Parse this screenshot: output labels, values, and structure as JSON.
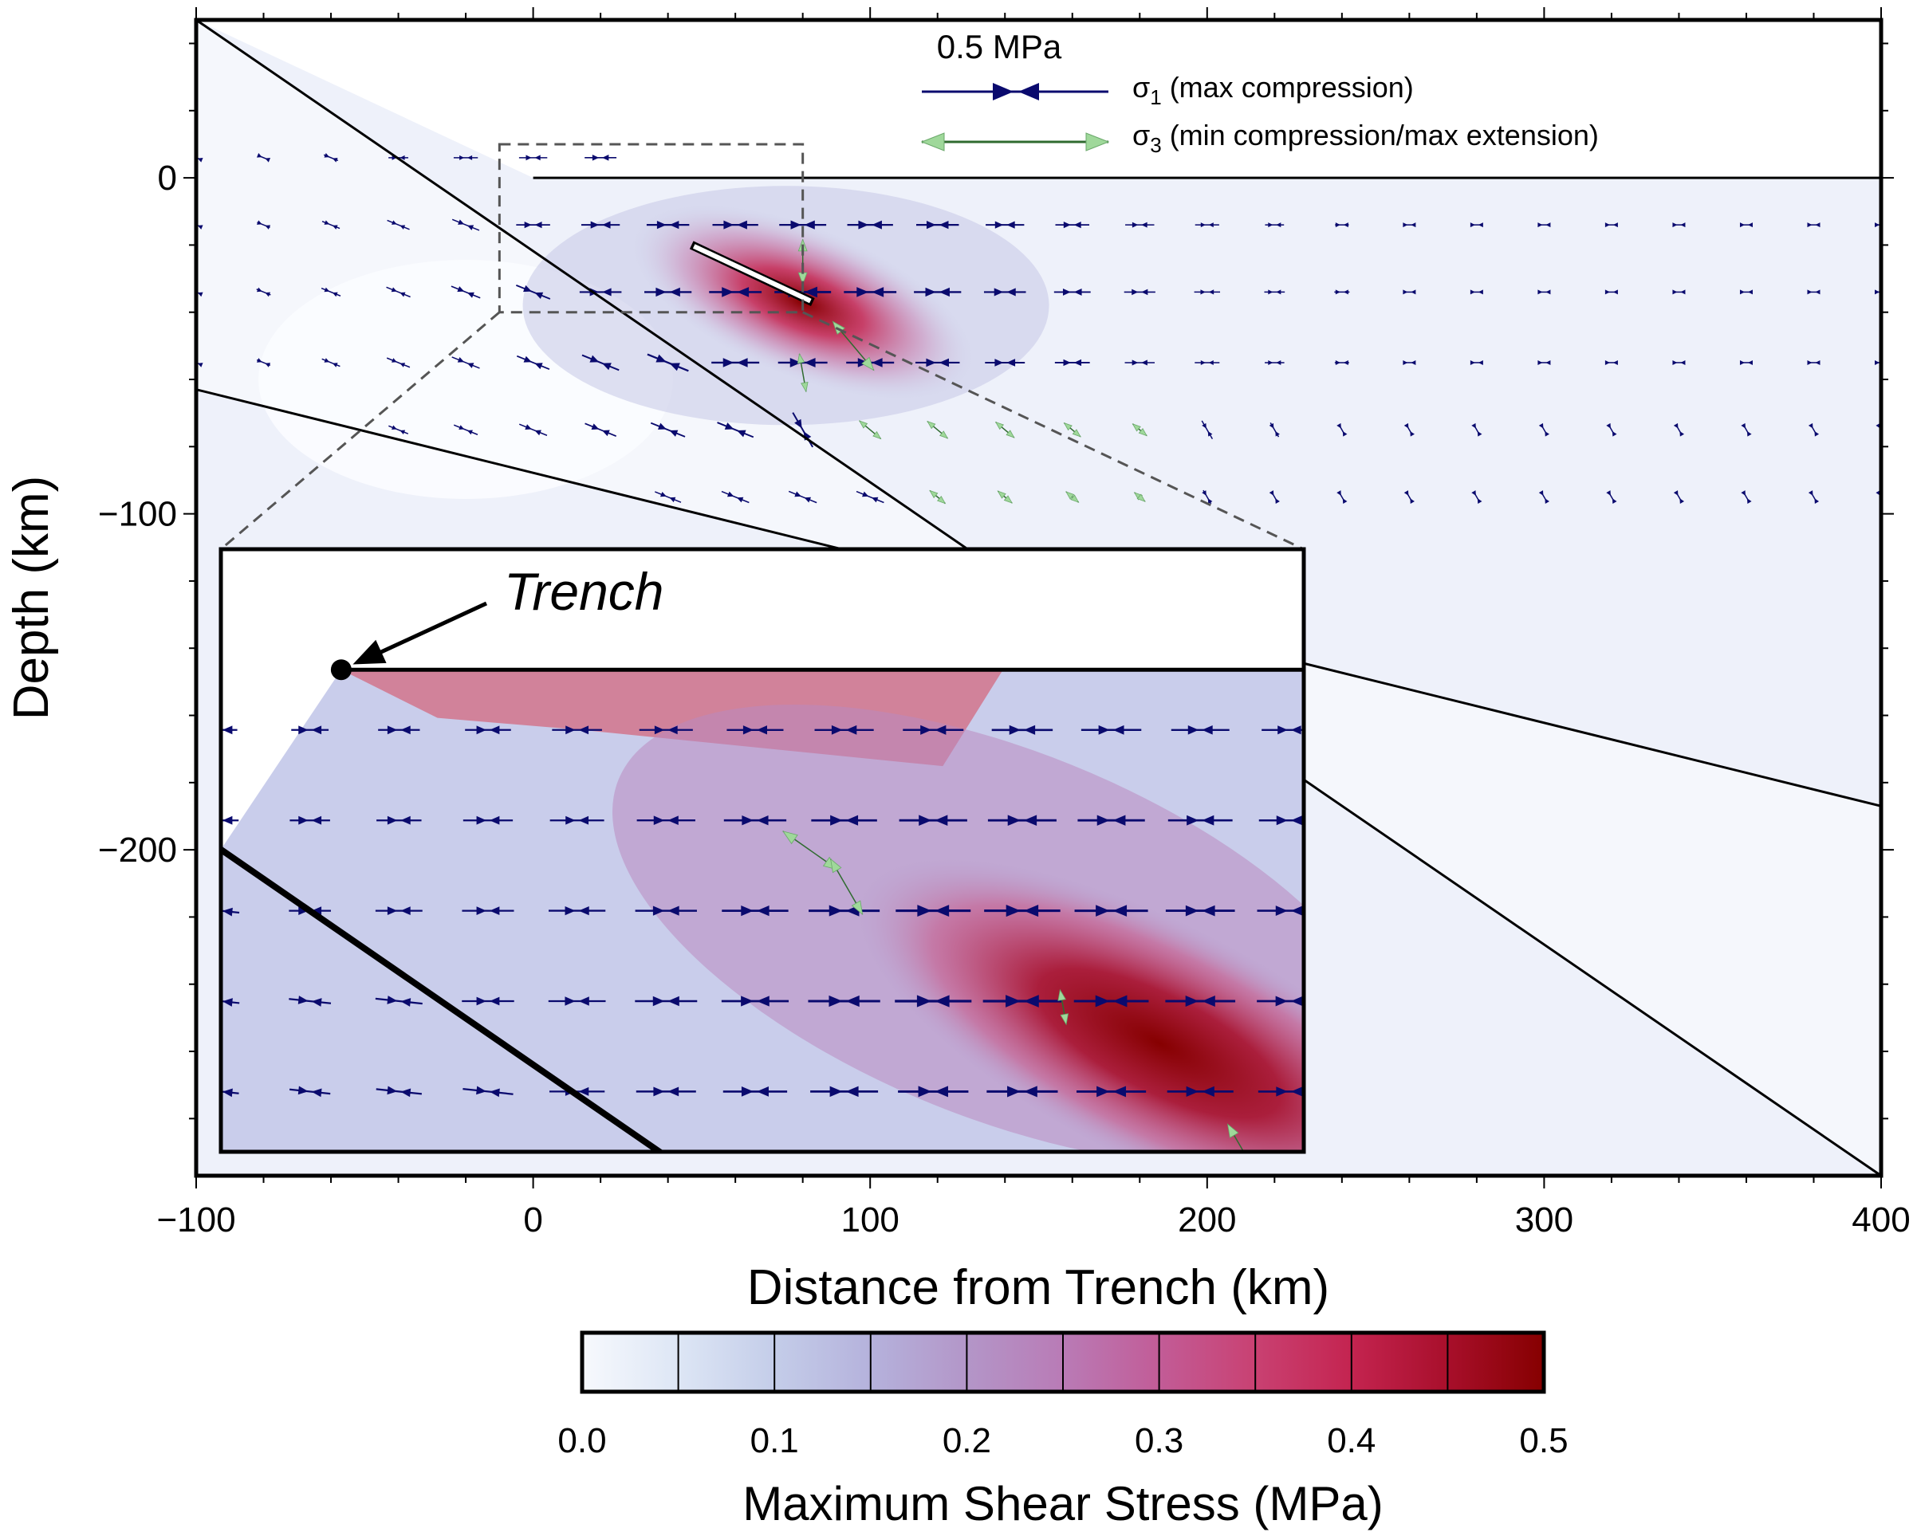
{
  "chart_data": {
    "type": "heatmap",
    "title": "",
    "xlabel": "Distance from Trench (km)",
    "ylabel": "Depth (km)",
    "xlim": [
      -100,
      400
    ],
    "ylim": [
      -297,
      47
    ],
    "x_ticks": [
      {
        "value": -100,
        "label": "−100"
      },
      {
        "value": 0,
        "label": "0"
      },
      {
        "value": 100,
        "label": "100"
      },
      {
        "value": 200,
        "label": "200"
      },
      {
        "value": 300,
        "label": "300"
      },
      {
        "value": 400,
        "label": "400"
      }
    ],
    "y_ticks": [
      {
        "value": 0,
        "label": "0"
      },
      {
        "value": -100,
        "label": "−100"
      },
      {
        "value": -200,
        "label": "−200"
      }
    ],
    "x_minor_step": 20,
    "y_minor_step": 20,
    "slab": {
      "top_line": [
        [
          -100,
          47
        ],
        [
          400,
          -297
        ]
      ],
      "bottom_line": [
        [
          -100,
          -63
        ],
        [
          400,
          -187
        ]
      ]
    },
    "fault": {
      "start": [
        47,
        -20
      ],
      "end": [
        83,
        -37
      ]
    },
    "stress_peak": {
      "x": 80,
      "y": -37,
      "value": 0.5
    },
    "inset": {
      "x_range": [
        -10,
        80
      ],
      "y_range": [
        -40,
        10
      ],
      "trench_label": "Trench",
      "trench_point": [
        0,
        0
      ]
    },
    "vector_legend": {
      "scale_label": "0.5 MPa",
      "sigma1": {
        "symbol": "σ",
        "sub": "1",
        "text": "(max compression)",
        "color": "#0a0a6e"
      },
      "sigma3": {
        "symbol": "σ",
        "sub": "3",
        "text": "(min compression/max extension)",
        "color": "#9fd89a"
      }
    },
    "colorbar": {
      "label": "Maximum Shear Stress (MPa)",
      "range": [
        0.0,
        0.5
      ],
      "step": 0.05,
      "tick_labels": [
        "0.0",
        "0.1",
        "0.2",
        "0.3",
        "0.4",
        "0.5"
      ],
      "colors": [
        "#f7f9fd",
        "#dde6f5",
        "#c4cde9",
        "#b5b2dc",
        "#b396c8",
        "#b97bb6",
        "#c25c97",
        "#c94172",
        "#c42450",
        "#a80f2b",
        "#860000"
      ]
    },
    "grid": false
  }
}
